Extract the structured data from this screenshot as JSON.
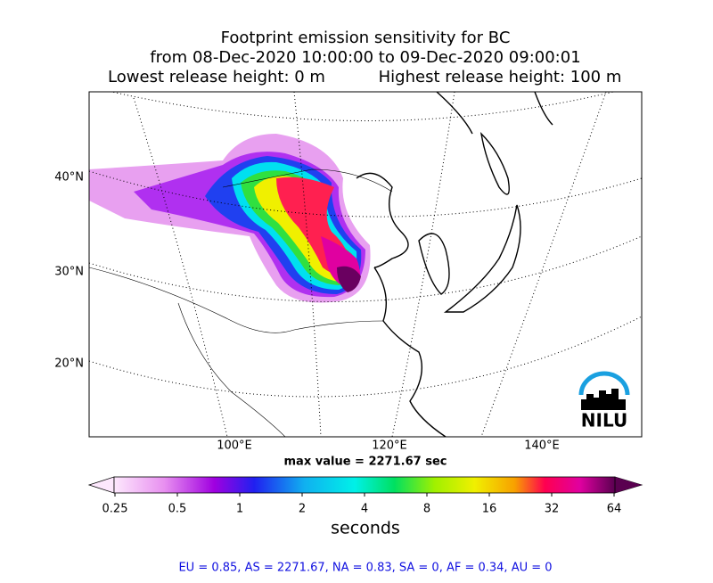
{
  "header": {
    "title": "Footprint emission sensitivity for BC",
    "period": "from 08-Dec-2020 10:00:00 to 09-Dec-2020 09:00:01",
    "lowest": "Lowest release height: 0 m",
    "highest": "Highest release height: 100 m"
  },
  "map": {
    "lat_labels": [
      "40°N",
      "30°N",
      "20°N"
    ],
    "lon_labels": [
      "100°E",
      "120°E",
      "140°E"
    ],
    "logo": "NILU",
    "max_value": "max value = 2271.67 sec"
  },
  "colorbar": {
    "ticks": [
      0.25,
      0.5,
      1,
      2,
      4,
      8,
      16,
      32,
      64
    ],
    "label": "seconds"
  },
  "footer": "EU = 0.85,  AS = 2271.67,  NA = 0.83,  SA = 0,  AF = 0.34,  AU = 0"
}
